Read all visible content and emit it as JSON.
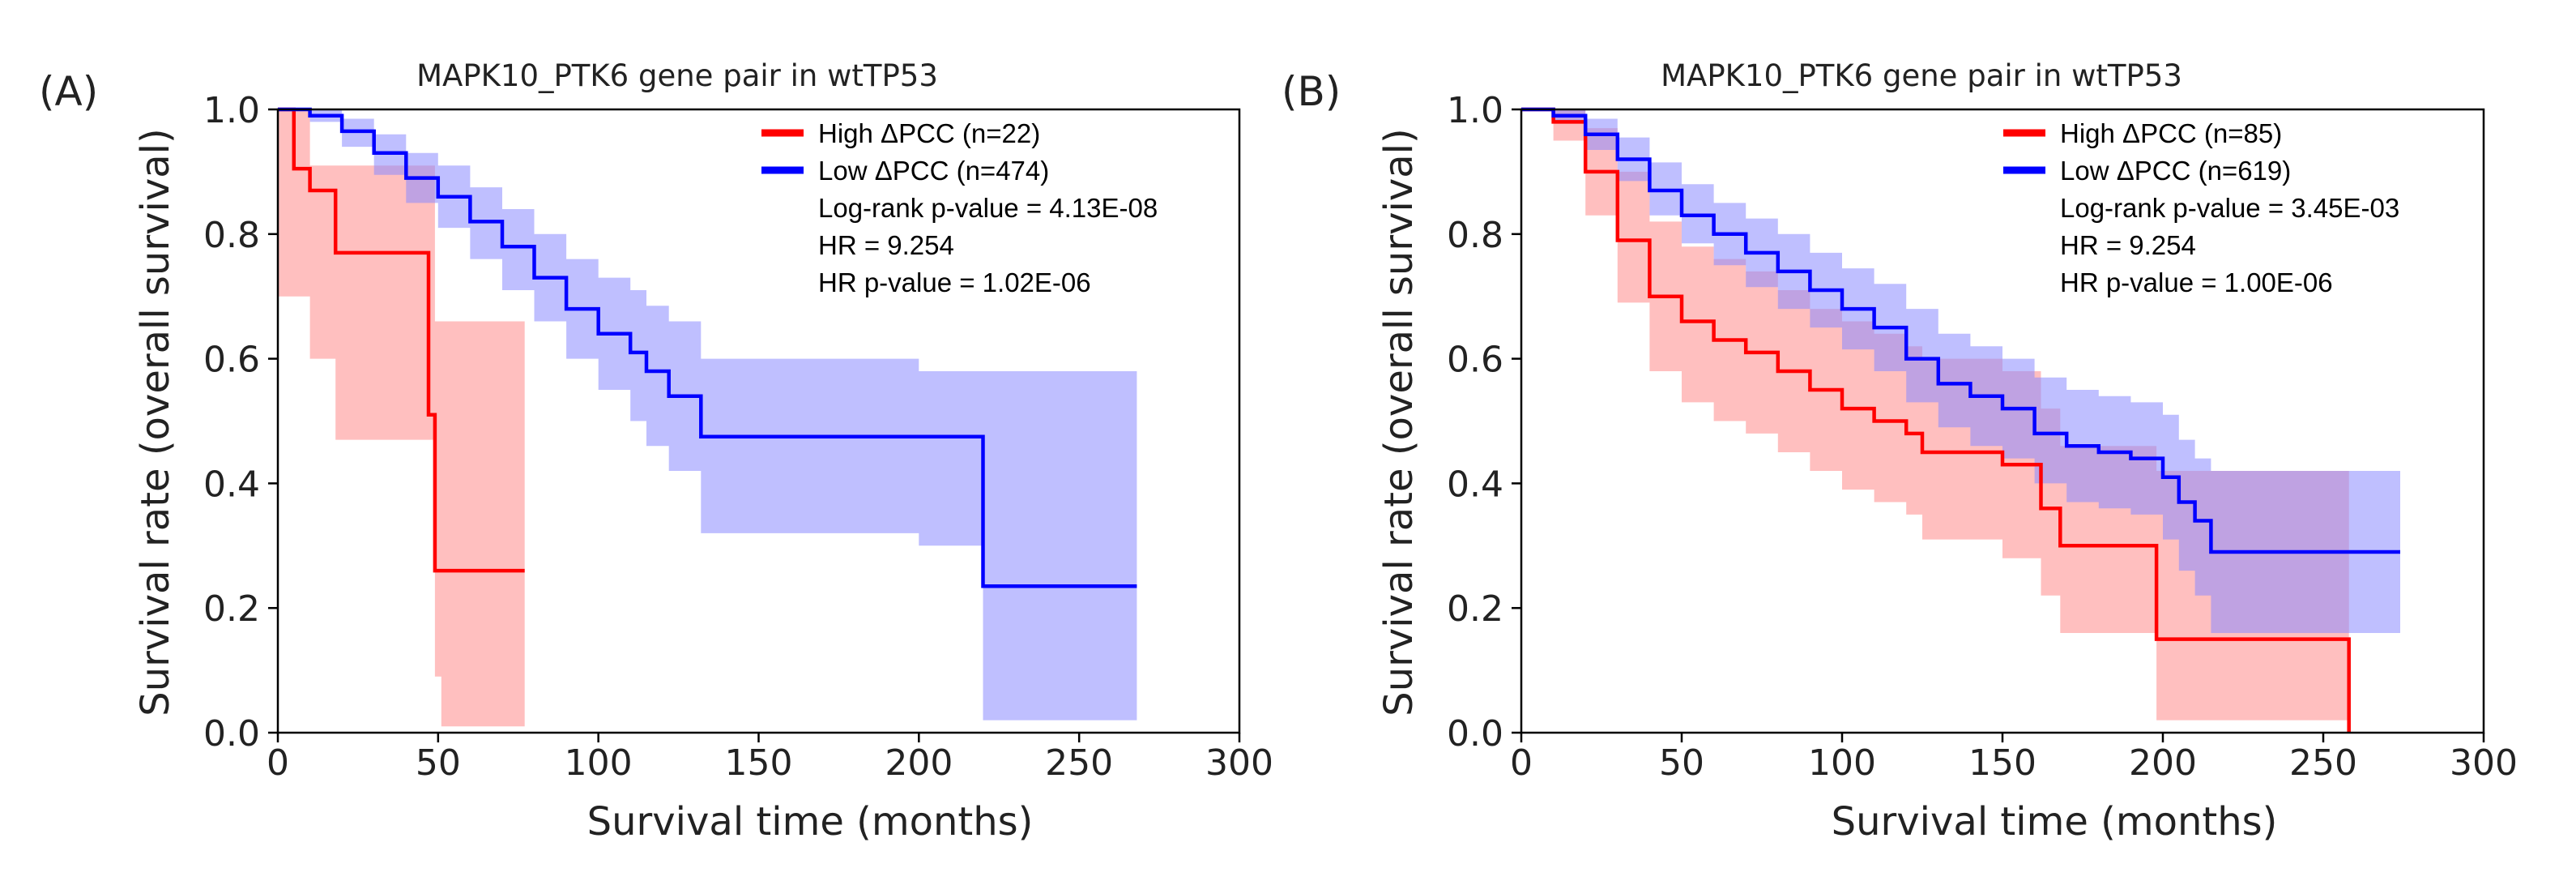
{
  "chart_data": [
    {
      "panel_label": "(A)",
      "type": "line",
      "title": "MAPK10_PTK6 gene pair in wtTP53",
      "xlabel": "Survival time (months)",
      "ylabel": "Survival rate (overall survival)",
      "xlim": [
        0,
        300
      ],
      "ylim": [
        0,
        1
      ],
      "xticks": [
        0,
        50,
        100,
        150,
        200,
        250,
        300
      ],
      "yticks": [
        0.0,
        0.2,
        0.4,
        0.6,
        0.8,
        1.0
      ],
      "xtick_labels": [
        "0",
        "50",
        "100",
        "150",
        "200",
        "250",
        "300"
      ],
      "ytick_labels": [
        "0.0",
        "0.2",
        "0.4",
        "0.6",
        "0.8",
        "1.0"
      ],
      "colors": {
        "high": "#ff0000",
        "low": "#0000ff",
        "high_ci": "#ff8a8a",
        "low_ci": "#8a8aff"
      },
      "series": [
        {
          "name": "High",
          "legend": "High ΔPCC (n=22)",
          "color": "#ff0000",
          "x": [
            0,
            5,
            10,
            18,
            47,
            49,
            51,
            77
          ],
          "y": [
            1.0,
            0.905,
            0.87,
            0.77,
            0.51,
            0.26,
            0.26,
            0.26
          ],
          "ci_upper": [
            1.0,
            1.0,
            0.91,
            0.91,
            0.91,
            0.66,
            0.66,
            0.66
          ],
          "ci_lower": [
            0.7,
            0.7,
            0.6,
            0.47,
            0.47,
            0.09,
            0.01,
            0.01
          ]
        },
        {
          "name": "Low",
          "legend": "Low ΔPCC (n=474)",
          "color": "#0000ff",
          "x": [
            0,
            10,
            20,
            30,
            40,
            50,
            60,
            70,
            80,
            90,
            100,
            110,
            115,
            122,
            132,
            200,
            220,
            268
          ],
          "y": [
            1.0,
            0.99,
            0.965,
            0.93,
            0.89,
            0.86,
            0.82,
            0.78,
            0.73,
            0.68,
            0.64,
            0.61,
            0.58,
            0.54,
            0.475,
            0.475,
            0.235,
            0.235
          ],
          "ci_upper": [
            1.0,
            1.0,
            0.985,
            0.96,
            0.93,
            0.91,
            0.875,
            0.84,
            0.8,
            0.76,
            0.73,
            0.71,
            0.685,
            0.66,
            0.6,
            0.58,
            0.58,
            0.58
          ],
          "ci_lower": [
            1.0,
            0.98,
            0.94,
            0.895,
            0.85,
            0.81,
            0.76,
            0.71,
            0.66,
            0.6,
            0.55,
            0.5,
            0.46,
            0.42,
            0.32,
            0.3,
            0.02,
            0.02
          ]
        }
      ],
      "stats": {
        "logrank": "Log-rank p-value = 4.13E-08",
        "hr": "HR = 9.254",
        "hr_p": "HR p-value = 1.02E-06"
      }
    },
    {
      "panel_label": "(B)",
      "type": "line",
      "title": "MAPK10_PTK6 gene pair in wtTP53",
      "xlabel": "Survival time (months)",
      "ylabel": "Survival rate (overall survival)",
      "xlim": [
        0,
        300
      ],
      "ylim": [
        0,
        1
      ],
      "xticks": [
        0,
        50,
        100,
        150,
        200,
        250,
        300
      ],
      "yticks": [
        0.0,
        0.2,
        0.4,
        0.6,
        0.8,
        1.0
      ],
      "xtick_labels": [
        "0",
        "50",
        "100",
        "150",
        "200",
        "250",
        "300"
      ],
      "ytick_labels": [
        "0.0",
        "0.2",
        "0.4",
        "0.6",
        "0.8",
        "1.0"
      ],
      "colors": {
        "high": "#ff0000",
        "low": "#0000ff",
        "high_ci": "#ff8a8a",
        "low_ci": "#8a8aff"
      },
      "series": [
        {
          "name": "High",
          "legend": "High ΔPCC (n=85)",
          "color": "#ff0000",
          "x": [
            0,
            10,
            20,
            30,
            40,
            50,
            60,
            70,
            80,
            90,
            100,
            110,
            120,
            125,
            150,
            162,
            168,
            198,
            258
          ],
          "y": [
            1.0,
            0.98,
            0.9,
            0.79,
            0.7,
            0.66,
            0.63,
            0.61,
            0.58,
            0.55,
            0.52,
            0.5,
            0.48,
            0.45,
            0.43,
            0.36,
            0.3,
            0.15,
            0.0
          ],
          "ci_upper": [
            1.0,
            1.0,
            0.97,
            0.9,
            0.82,
            0.78,
            0.76,
            0.74,
            0.71,
            0.68,
            0.66,
            0.64,
            0.62,
            0.6,
            0.58,
            0.52,
            0.46,
            0.42,
            0.42
          ],
          "ci_lower": [
            1.0,
            0.95,
            0.83,
            0.69,
            0.58,
            0.53,
            0.5,
            0.48,
            0.45,
            0.42,
            0.39,
            0.37,
            0.35,
            0.31,
            0.28,
            0.22,
            0.16,
            0.02,
            0.0
          ]
        },
        {
          "name": "Low",
          "legend": "Low ΔPCC (n=619)",
          "color": "#0000ff",
          "x": [
            0,
            10,
            20,
            30,
            40,
            50,
            60,
            70,
            80,
            90,
            100,
            110,
            120,
            130,
            140,
            150,
            160,
            170,
            180,
            190,
            200,
            205,
            210,
            215,
            274
          ],
          "y": [
            1.0,
            0.99,
            0.96,
            0.92,
            0.87,
            0.83,
            0.8,
            0.77,
            0.74,
            0.71,
            0.68,
            0.65,
            0.6,
            0.56,
            0.54,
            0.52,
            0.48,
            0.46,
            0.45,
            0.44,
            0.41,
            0.37,
            0.34,
            0.29,
            0.29
          ],
          "ci_upper": [
            1.0,
            1.0,
            0.985,
            0.955,
            0.915,
            0.88,
            0.85,
            0.825,
            0.8,
            0.77,
            0.745,
            0.72,
            0.68,
            0.64,
            0.62,
            0.6,
            0.57,
            0.55,
            0.54,
            0.53,
            0.51,
            0.47,
            0.44,
            0.42,
            0.42
          ],
          "ci_lower": [
            1.0,
            0.98,
            0.935,
            0.885,
            0.83,
            0.785,
            0.75,
            0.715,
            0.68,
            0.65,
            0.615,
            0.58,
            0.53,
            0.49,
            0.46,
            0.44,
            0.4,
            0.37,
            0.36,
            0.35,
            0.31,
            0.26,
            0.22,
            0.16,
            0.16
          ]
        }
      ],
      "stats": {
        "logrank": "Log-rank p-value = 3.45E-03",
        "hr": "HR = 9.254",
        "hr_p": "HR p-value = 1.00E-06"
      }
    }
  ]
}
